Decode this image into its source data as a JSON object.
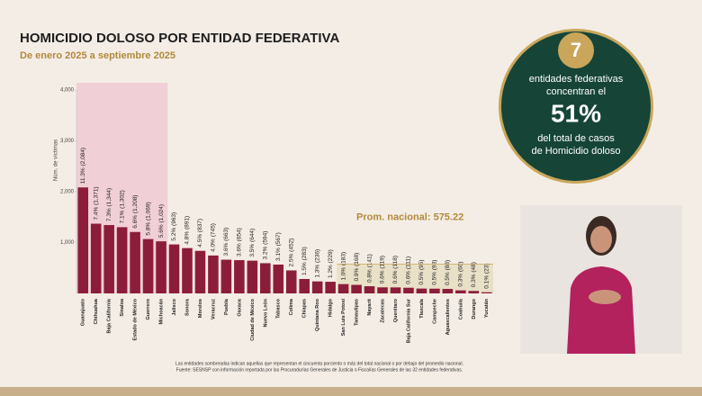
{
  "chart_data": {
    "type": "bar",
    "title": "HOMICIDIO DOLOSO POR ENTIDAD FEDERATIVA",
    "subtitle": "De enero 2025 a septiembre 2025",
    "y_label": "Núm. de víctimas",
    "categories": [
      "Guanajuato",
      "Chihuahua",
      "Baja California",
      "Sinaloa",
      "Estado de México",
      "Guerrero",
      "Michoacán",
      "Jalisco",
      "Sonora",
      "Morelos",
      "Veracruz",
      "Puebla",
      "Oaxaca",
      "Ciudad de México",
      "Nuevo León",
      "Tabasco",
      "Colima",
      "Chiapas",
      "Quintana Roo",
      "Hidalgo",
      "San Luis Potosí",
      "Tamaulipas",
      "Nayarit",
      "Zacatecas",
      "Querétaro",
      "Baja California Sur",
      "Tlaxcala",
      "Campeche",
      "Aguascalientes",
      "Coahuila",
      "Durango",
      "Yucatán"
    ],
    "values": [
      2084,
      1371,
      1344,
      1302,
      1208,
      1069,
      1024,
      963,
      891,
      837,
      745,
      663,
      654,
      644,
      594,
      567,
      452,
      283,
      236,
      229,
      183,
      168,
      141,
      119,
      118,
      111,
      95,
      93,
      88,
      60,
      48,
      23
    ],
    "value_labels": [
      "11.3% (2,084)",
      "7.4% (1,371)",
      "7.3% (1,344)",
      "7.1% (1,302)",
      "6.6% (1,208)",
      "5.8% (1,069)",
      "5.6% (1,024)",
      "5.2% (963)",
      "4.8% (891)",
      "4.5% (837)",
      "4.0% (745)",
      "3.6% (663)",
      "3.6% (654)",
      "3.5% (644)",
      "3.2% (594)",
      "3.1% (567)",
      "2.5% (452)",
      "1.5% (283)",
      "1.3% (236)",
      "1.2% (229)",
      "1.0% (183)",
      "0.9% (168)",
      "0.8% (141)",
      "0.6% (119)",
      "0.6% (118)",
      "0.6% (111)",
      "0.5% (95)",
      "0.5% (93)",
      "0.5% (88)",
      "0.3% (60)",
      "0.3% (48)",
      "0.1% (23)"
    ],
    "color": "#8c1d3a",
    "ylim": [
      0,
      4000
    ],
    "yticks": [
      {
        "value": 1000,
        "label": "1,000"
      },
      {
        "value": 2000,
        "label": "2,000"
      },
      {
        "value": 3000,
        "label": "3,000"
      },
      {
        "value": 4000,
        "label": "4,000"
      }
    ],
    "average": {
      "value": 575.22,
      "label": "Prom. nacional: 575.22"
    },
    "notes": [
      "Las entidades sombreadas indican aquellas que representan el cincuenta porciento o más del total nacional o por debajo del promedio nacional.",
      "Fuente: SESNSP con información reportada por las Procuradurías Generales de Justicia o Fiscalías Generales de las 32 entidades federativas."
    ]
  },
  "highlight": {
    "number": "7",
    "line1": "entidades federativas",
    "line2": "concentran el",
    "percent": "51%",
    "line3": "del total de casos",
    "line4": "de Homicidio doloso"
  }
}
